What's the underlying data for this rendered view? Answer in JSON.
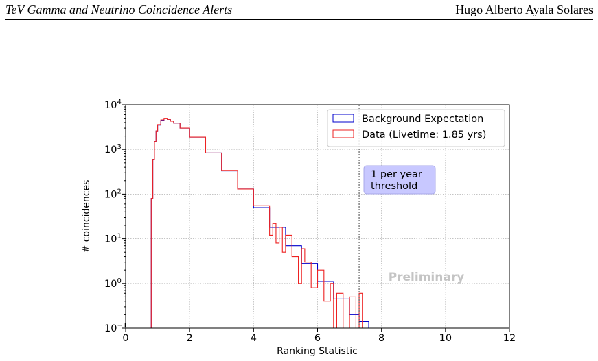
{
  "header": {
    "left_title": "TeV Gamma and Neutrino Coincidence Alerts",
    "author": "Hugo Alberto Ayala Solares"
  },
  "chart_data": {
    "type": "histogram",
    "xlabel": "Ranking Statistic",
    "ylabel": "# coincidences",
    "xlim": [
      0,
      12
    ],
    "ylim": [
      0.1,
      10000
    ],
    "yscale": "log",
    "grid": true,
    "x_ticks": [
      "0",
      "2",
      "4",
      "6",
      "8",
      "10",
      "12"
    ],
    "y_ticks": [
      {
        "base": "10",
        "exp": "4"
      },
      {
        "base": "10",
        "exp": "3"
      },
      {
        "base": "10",
        "exp": "2"
      },
      {
        "base": "10",
        "exp": "1"
      },
      {
        "base": "10",
        "exp": "0"
      },
      {
        "base": "10",
        "exp": "−1"
      }
    ],
    "legend_position": "upper-right",
    "threshold": {
      "x": 7.3,
      "label_line1": "1 per year",
      "label_line2": "threshold"
    },
    "watermark": "Preliminary",
    "series": [
      {
        "name": "Background Expectation",
        "color": "#0000cc",
        "x": [
          0.8,
          0.85,
          0.9,
          0.95,
          1.0,
          1.1,
          1.2,
          1.3,
          1.4,
          1.5,
          1.7,
          2.0,
          2.5,
          3.0,
          3.5,
          4.0,
          4.5,
          5.0,
          5.5,
          6.0,
          6.5,
          7.0,
          7.3,
          7.6
        ],
        "values": [
          80,
          600,
          1500,
          2600,
          3500,
          4500,
          4900,
          4700,
          4300,
          3900,
          3000,
          1900,
          830,
          330,
          130,
          50,
          18,
          7,
          2.8,
          1.1,
          0.45,
          0.2,
          0.14,
          0.1
        ]
      },
      {
        "name": "Data (Livetime: 1.85 yrs)",
        "color": "#ee2222",
        "x": [
          0.8,
          0.85,
          0.9,
          0.95,
          1.0,
          1.1,
          1.2,
          1.3,
          1.4,
          1.5,
          1.7,
          2.0,
          2.5,
          3.0,
          3.5,
          4.0,
          4.5,
          4.6,
          4.7,
          4.8,
          4.9,
          5.0,
          5.2,
          5.4,
          5.5,
          5.6,
          5.8,
          6.0,
          6.2,
          6.4,
          6.5,
          6.6,
          6.8,
          7.0,
          7.2,
          7.3,
          7.4
        ],
        "values": [
          80,
          600,
          1500,
          2600,
          3600,
          4600,
          5000,
          4700,
          4300,
          3900,
          3000,
          1900,
          830,
          340,
          130,
          55,
          12,
          22,
          8,
          18,
          5,
          12,
          4,
          1,
          6,
          3,
          0.8,
          2,
          0.4,
          1,
          0.1,
          0.6,
          0.1,
          0.5,
          0.1,
          0.6,
          0.1
        ]
      }
    ]
  }
}
